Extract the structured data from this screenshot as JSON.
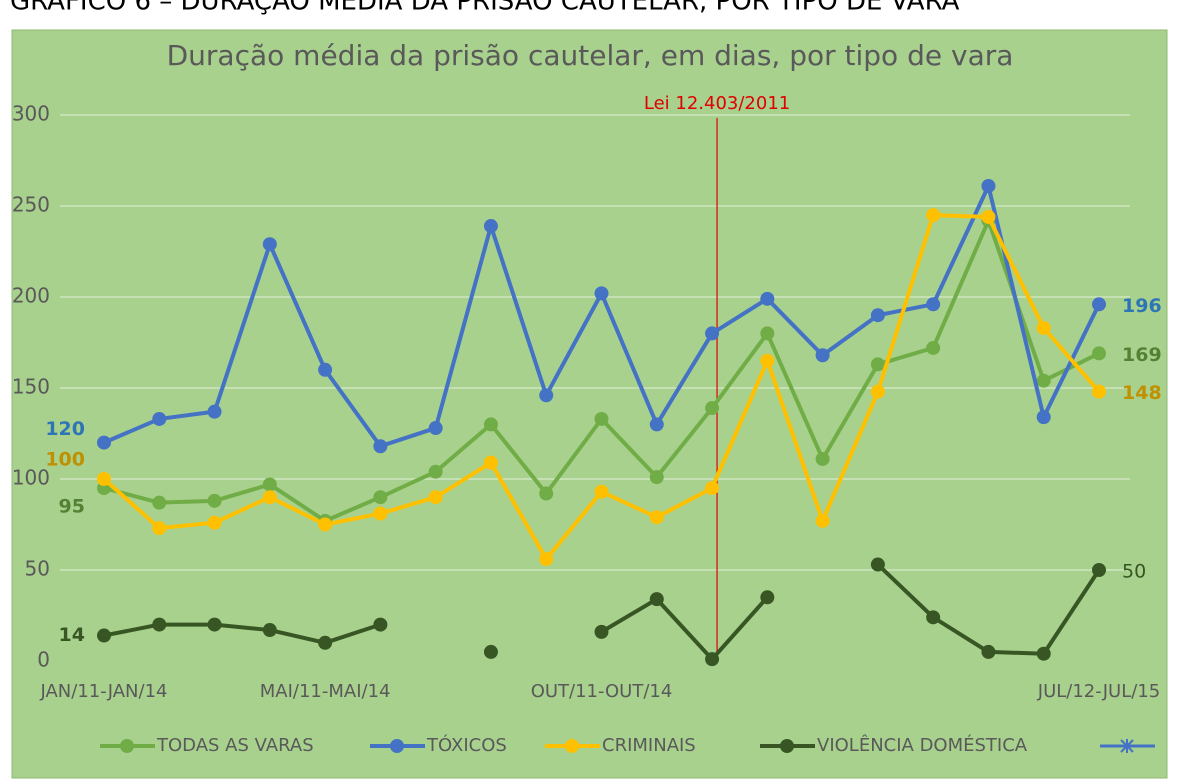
{
  "page_title": "GRÁFICO 6 – DURAÇÃO MÉDIA DA PRISÃO CAUTELAR, POR TIPO DE VARA",
  "chart_data": {
    "type": "line",
    "title": "Duração média da prisão cautelar, em dias, por tipo de vara",
    "annotation": "Lei 12.403/2011",
    "categories": [
      "JAN/11-JAN/14",
      null,
      null,
      null,
      "MAI/11-MAI/14",
      null,
      null,
      null,
      null,
      "OUT/11-OUT/14",
      null,
      null,
      null,
      null,
      null,
      null,
      null,
      null,
      "JUL/12-JUL/15"
    ],
    "ylim": [
      0,
      300
    ],
    "yticks": [
      0,
      50,
      100,
      150,
      200,
      250,
      300
    ],
    "grid": true,
    "legend": "bottom",
    "series": [
      {
        "name": "TODAS AS VARAS",
        "color": "#70ad47",
        "label_color": "#548235",
        "values": [
          95,
          87,
          88,
          97,
          77,
          90,
          104,
          130,
          92,
          133,
          101,
          139,
          180,
          111,
          163,
          172,
          242,
          154,
          169
        ]
      },
      {
        "name": "TÓXICOS",
        "color": "#4472c4",
        "label_color": "#2e75b6",
        "values": [
          120,
          133,
          137,
          229,
          160,
          118,
          128,
          239,
          146,
          202,
          130,
          180,
          199,
          168,
          190,
          196,
          261,
          134,
          196
        ]
      },
      {
        "name": "CRIMINAIS",
        "color": "#ffc000",
        "label_color": "#bf9000",
        "values": [
          100,
          73,
          76,
          90,
          75,
          81,
          90,
          109,
          56,
          93,
          79,
          95,
          165,
          77,
          148,
          245,
          244,
          183,
          148
        ]
      },
      {
        "name": "VIOLÊNCIA DOMÉSTICA",
        "color": "#375623",
        "label_color": "#375623",
        "values": [
          14,
          20,
          20,
          17,
          10,
          20,
          null,
          5,
          null,
          16,
          34,
          1,
          35,
          null,
          53,
          24,
          5,
          4,
          50
        ]
      }
    ]
  }
}
